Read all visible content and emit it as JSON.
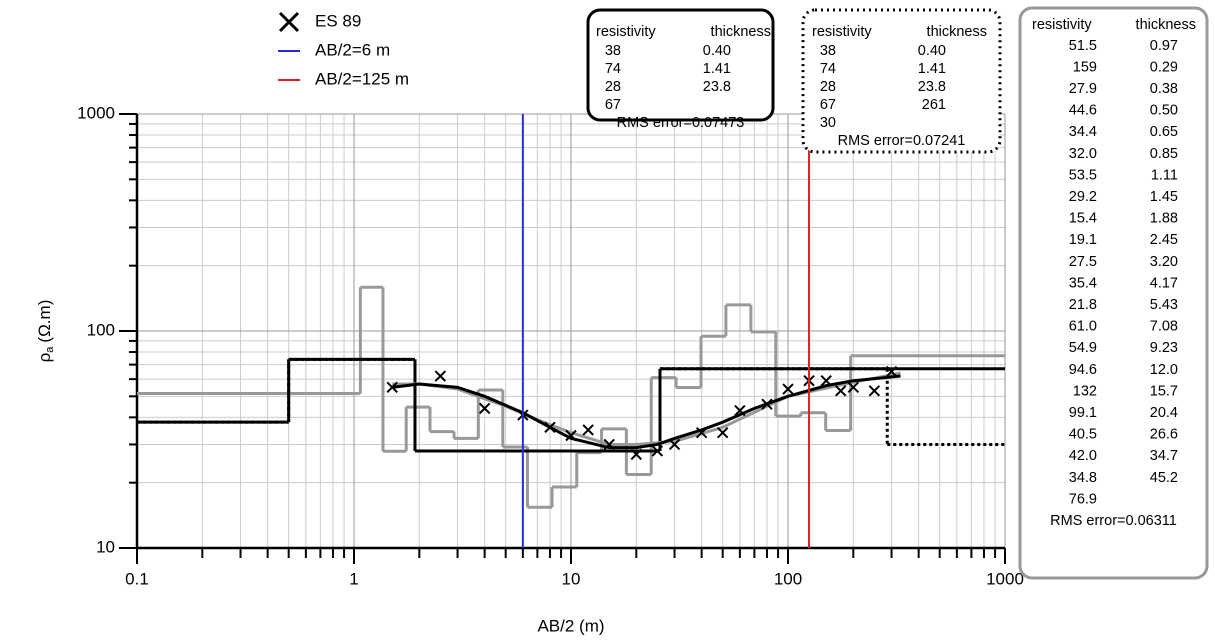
{
  "chart_data": {
    "type": "scatter",
    "xlabel": "AB/2 (m)",
    "ylabel": {
      "symbol": "ρ",
      "subscript": "a",
      "unit": "(Ω.m)"
    },
    "xscale": "log",
    "yscale": "log",
    "grid": true,
    "xlim": [
      0.1,
      1000
    ],
    "ylim": [
      10,
      1000
    ],
    "xticks": [
      0.1,
      1,
      10,
      100,
      1000
    ],
    "yticks": [
      10,
      100,
      1000
    ],
    "series": [
      {
        "name": "ES 89",
        "marker": "x",
        "color": "#000000",
        "x": [
          1.5,
          2.5,
          4,
          6,
          8,
          10,
          12,
          15,
          20,
          25,
          30,
          40,
          50,
          60,
          80,
          100,
          125,
          150,
          175,
          200,
          250,
          300
        ],
        "values": [
          55,
          62,
          44,
          41,
          36,
          33,
          35,
          30,
          27,
          28,
          30,
          34,
          34,
          43,
          46,
          54,
          59,
          59,
          53,
          55,
          53,
          65
        ]
      }
    ],
    "vlines": [
      {
        "name": "AB/2=6 m",
        "x": 6,
        "color": "#2b2bd6"
      },
      {
        "name": "AB/2=125 m",
        "x": 125,
        "color": "#e02020"
      }
    ],
    "curves": [
      {
        "color": "#999999",
        "x": [
          1.5,
          2,
          3,
          5,
          8,
          10,
          15,
          20,
          30,
          50,
          100,
          200,
          330
        ],
        "values": [
          57,
          57,
          54,
          45,
          37,
          34,
          30,
          30,
          31,
          36,
          50,
          58,
          64
        ]
      },
      {
        "color": "#000000",
        "x": [
          1.5,
          2,
          3,
          4,
          6,
          8,
          10,
          15,
          20,
          25,
          30,
          40,
          50,
          70,
          100,
          150,
          200,
          330
        ],
        "values": [
          55,
          57,
          55,
          50,
          42,
          36,
          32,
          29,
          29,
          30,
          32,
          35,
          38,
          44,
          50,
          56,
          59,
          62
        ]
      }
    ],
    "models": [
      {
        "header": [
          "resistivity",
          "thickness"
        ],
        "color": "#000000",
        "line": "solid",
        "border": "solid",
        "resistivity": [
          38,
          74,
          28,
          67
        ],
        "thickness": [
          0.4,
          1.41,
          23.8
        ],
        "thickness_labels": [
          "0.40",
          "1.41",
          "23.8"
        ],
        "rms": "RMS error=0.07473"
      },
      {
        "header": [
          "resistivity",
          "thickness"
        ],
        "color": "#000000",
        "line": "dotted",
        "border": "dotted",
        "resistivity": [
          38,
          74,
          28,
          67,
          30
        ],
        "thickness": [
          0.4,
          1.41,
          23.8,
          261
        ],
        "thickness_labels": [
          "0.40",
          "1.41",
          "23.8",
          "261"
        ],
        "rms": "RMS error=0.07241"
      },
      {
        "header": [
          "resistivity",
          "thickness"
        ],
        "color": "#999999",
        "line": "solid",
        "border": "solid",
        "resistivity": [
          51.5,
          159,
          27.9,
          44.6,
          34.4,
          32.0,
          53.5,
          29.2,
          15.4,
          19.1,
          27.5,
          35.4,
          21.8,
          61.0,
          54.9,
          94.6,
          132,
          99.1,
          40.5,
          42.0,
          34.8,
          76.9
        ],
        "resistivity_labels": [
          "51.5",
          "159",
          "27.9",
          "44.6",
          "34.4",
          "32.0",
          "53.5",
          "29.2",
          "15.4",
          "19.1",
          "27.5",
          "35.4",
          "21.8",
          "61.0",
          "54.9",
          "94.6",
          "132",
          "99.1",
          "40.5",
          "42.0",
          "34.8",
          "76.9"
        ],
        "thickness": [
          0.97,
          0.29,
          0.38,
          0.5,
          0.65,
          0.85,
          1.11,
          1.45,
          1.88,
          2.45,
          3.2,
          4.17,
          5.43,
          7.08,
          9.23,
          12.0,
          15.7,
          20.4,
          26.6,
          34.7,
          45.2
        ],
        "thickness_labels": [
          "0.97",
          "0.29",
          "0.38",
          "0.50",
          "0.65",
          "0.85",
          "1.11",
          "1.45",
          "1.88",
          "2.45",
          "3.20",
          "4.17",
          "5.43",
          "7.08",
          "9.23",
          "12.0",
          "15.7",
          "20.4",
          "26.6",
          "34.7",
          "45.2"
        ],
        "rms": "RMS error=0.06311"
      }
    ]
  }
}
